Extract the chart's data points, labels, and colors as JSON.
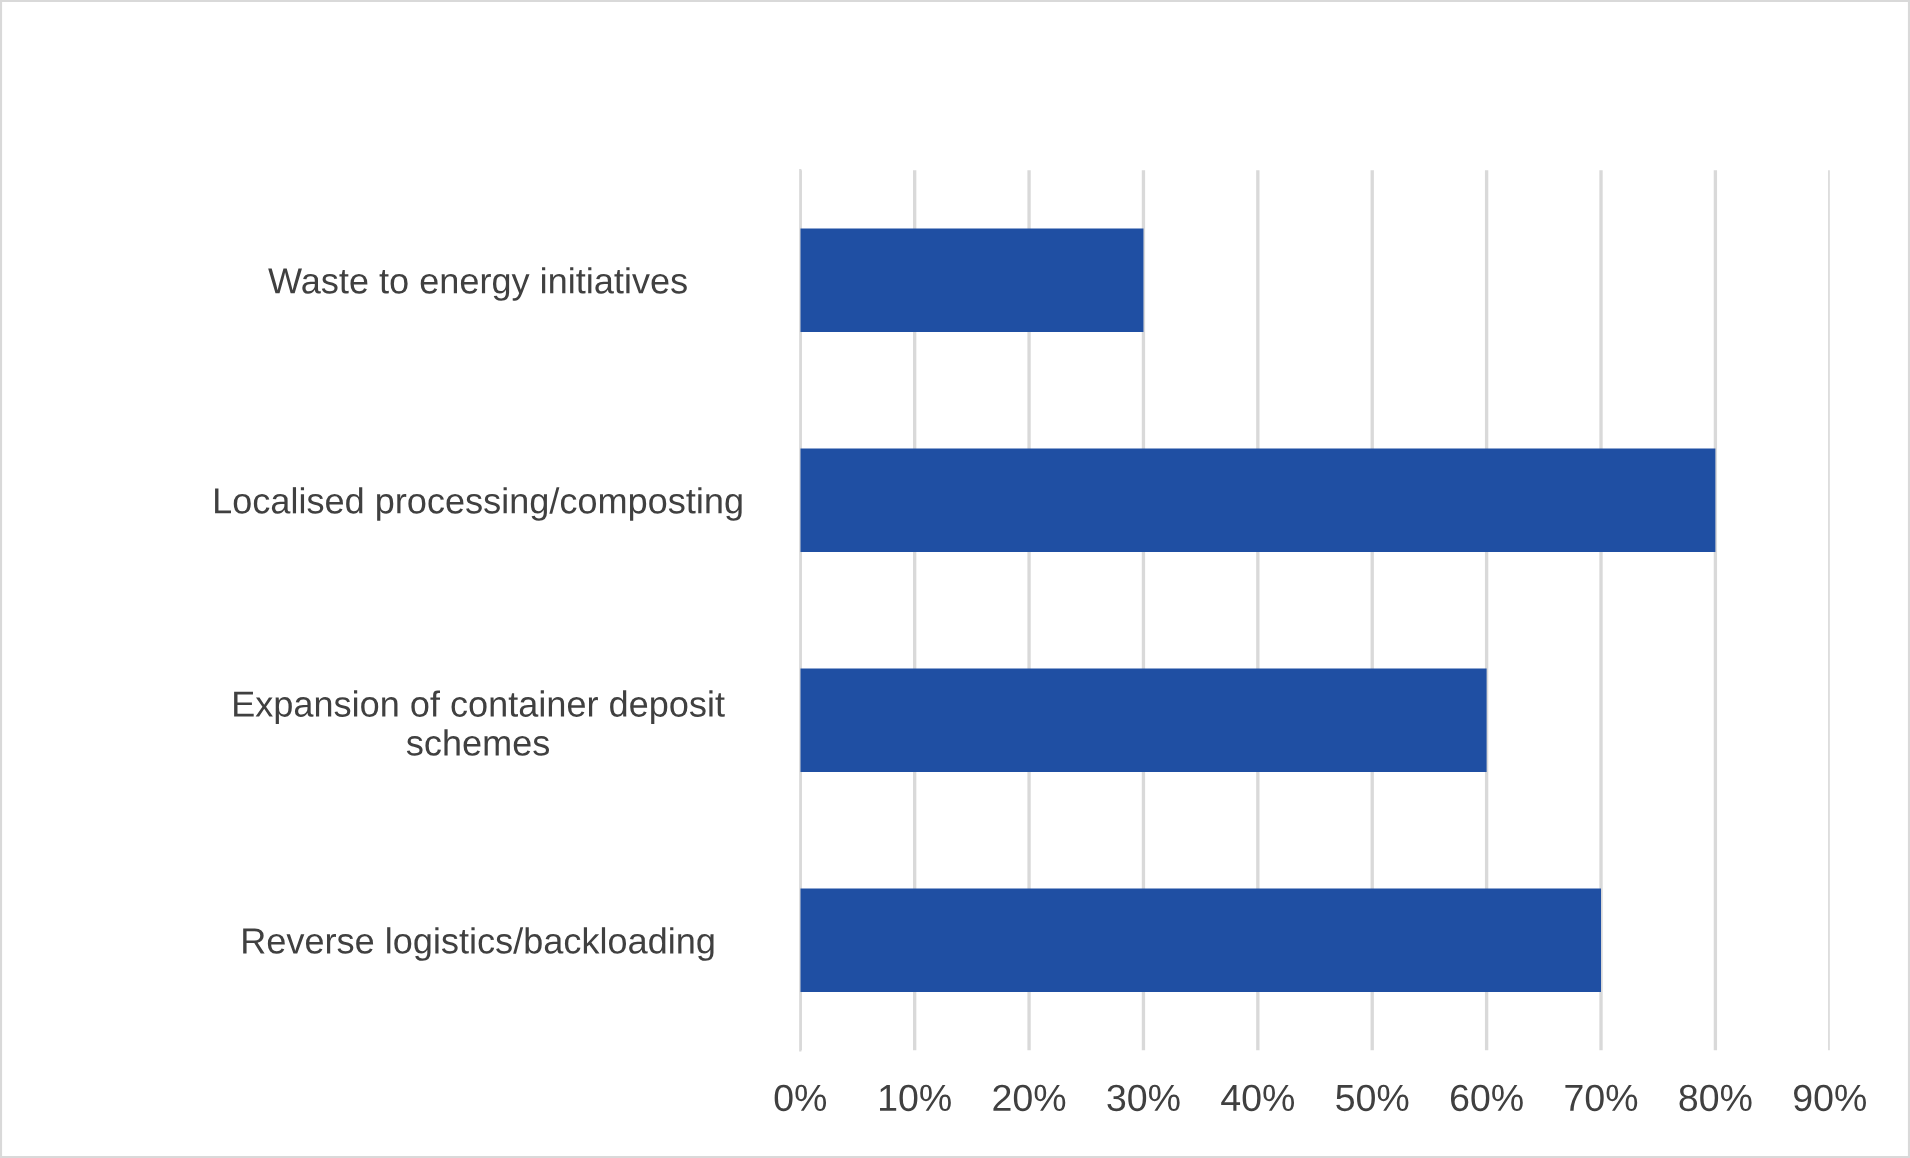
{
  "chart_data": {
    "type": "bar",
    "orientation": "horizontal",
    "categories": [
      "Waste to energy initiatives",
      "Localised processing/composting",
      "Expansion of container deposit\nschemes",
      "Reverse logistics/backloading"
    ],
    "values": [
      30,
      80,
      60,
      70
    ],
    "color": "#1f4fa3",
    "xlim": [
      0,
      90
    ],
    "xticks": [
      {
        "value": 0,
        "label": "0%"
      },
      {
        "value": 10,
        "label": "10%"
      },
      {
        "value": 20,
        "label": "20%"
      },
      {
        "value": 30,
        "label": "30%"
      },
      {
        "value": 40,
        "label": "40%"
      },
      {
        "value": 50,
        "label": "50%"
      },
      {
        "value": 60,
        "label": "60%"
      },
      {
        "value": 70,
        "label": "70%"
      },
      {
        "value": 80,
        "label": "80%"
      },
      {
        "value": 90,
        "label": "90%"
      }
    ],
    "grid": "x",
    "legend": false
  }
}
